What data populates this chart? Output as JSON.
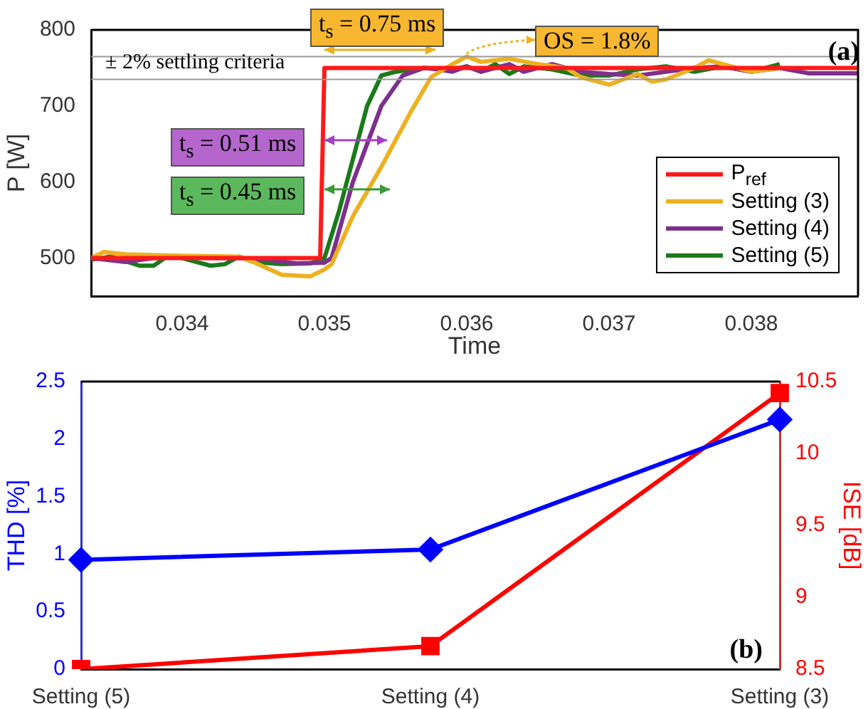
{
  "chart_data": [
    {
      "type": "line",
      "xlabel": "Time",
      "ylabel": "P [W]",
      "xlim": [
        0.03336,
        0.03875
      ],
      "xticks": [
        0.034,
        0.035,
        0.036,
        0.037,
        0.038
      ],
      "ylim": [
        450,
        800
      ],
      "yticks": [
        500,
        600,
        700,
        800
      ],
      "grid": false,
      "legend": "bottom right",
      "marker": "none",
      "line_style": "solid",
      "series": [
        {
          "name": "P$_{ref}$",
          "color": "#ff1a1a",
          "x": [
            0.03336,
            0.03497,
            0.035,
            0.03875
          ],
          "values": [
            500,
            500,
            750,
            750
          ]
        },
        {
          "name": "Setting (3)",
          "color": "#edb120",
          "x": [
            0.03336,
            0.03345,
            0.0336,
            0.034,
            0.0344,
            0.0345,
            0.0347,
            0.0349,
            0.035,
            0.03505,
            0.0352,
            0.0354,
            0.0356,
            0.03575,
            0.0359,
            0.036,
            0.0361,
            0.0363,
            0.0365,
            0.0367,
            0.0368,
            0.037,
            0.0371,
            0.0372,
            0.0373,
            0.0374,
            0.0376,
            0.0377,
            0.0378,
            0.038,
            0.0382
          ],
          "values": [
            500,
            508,
            505,
            503,
            502,
            495,
            478,
            476,
            485,
            492,
            555,
            620,
            690,
            738,
            755,
            765,
            758,
            762,
            755,
            750,
            738,
            728,
            735,
            742,
            732,
            735,
            750,
            760,
            755,
            745,
            750
          ]
        },
        {
          "name": "Setting (4)",
          "color": "#7e2f8e",
          "x": [
            0.03336,
            0.0336,
            0.0338,
            0.034,
            0.0342,
            0.0344,
            0.0346,
            0.0348,
            0.035,
            0.03505,
            0.0352,
            0.0354,
            0.03555,
            0.0357,
            0.0358,
            0.0359,
            0.036,
            0.0361,
            0.0363,
            0.0364,
            0.0366,
            0.0368,
            0.037,
            0.0372,
            0.0374,
            0.0376,
            0.0378,
            0.038,
            0.0382,
            0.0384,
            0.03875
          ],
          "values": [
            500,
            495,
            500,
            502,
            500,
            500,
            498,
            493,
            494,
            500,
            600,
            700,
            740,
            750,
            748,
            745,
            752,
            745,
            755,
            745,
            755,
            745,
            742,
            740,
            745,
            750,
            752,
            745,
            750,
            743,
            743
          ]
        },
        {
          "name": "Setting (5)",
          "color": "#1a7a1a",
          "x": [
            0.03336,
            0.0335,
            0.0337,
            0.0338,
            0.0339,
            0.034,
            0.0342,
            0.0343,
            0.0344,
            0.0345,
            0.0347,
            0.0349,
            0.035,
            0.0351,
            0.0352,
            0.0353,
            0.0354,
            0.0355,
            0.0357,
            0.0359,
            0.036,
            0.0361,
            0.0362,
            0.0363,
            0.0364,
            0.0366,
            0.0368,
            0.037,
            0.0372,
            0.0374,
            0.0376,
            0.0378,
            0.038,
            0.0382
          ],
          "values": [
            498,
            502,
            490,
            490,
            503,
            500,
            490,
            492,
            502,
            495,
            492,
            493,
            500,
            560,
            630,
            700,
            740,
            745,
            750,
            748,
            752,
            745,
            755,
            742,
            752,
            748,
            740,
            740,
            748,
            752,
            745,
            752,
            745,
            755
          ]
        }
      ],
      "ref_lines": [
        {
          "axis": "y",
          "value": 765,
          "color": "#999999"
        },
        {
          "axis": "y",
          "value": 735,
          "color": "#999999"
        }
      ],
      "annotations": [
        "t$_{s}$ = 0.75 ms",
        {
          "text": "OS = 1.8%",
          "x": 0.036,
          "y": 765
        },
        "± 2% settling criteria",
        {
          "text": "t$_{s}$ = 0.51 ms",
          "x": 0.03531,
          "y": 655
        },
        "t$_{s}$ = 0.45 ms",
        "(a)"
      ]
    },
    {
      "type": "line",
      "ylabel": "THD [%]",
      "y2label": "ISE [dB]",
      "categories": [
        "Setting (5)",
        "Setting (4)",
        "Setting (3)"
      ],
      "ylim": [
        0,
        2.5
      ],
      "yticks": [
        0,
        0.5,
        1,
        1.5,
        2,
        2.5
      ],
      "y2lim": [
        8.5,
        10.5
      ],
      "y2ticks": [
        8.5,
        9,
        9.5,
        10,
        10.5
      ],
      "grid": false,
      "legend": false,
      "line_style": "solid",
      "series": [
        {
          "color": "#0000ff",
          "marker": "diamond",
          "values": [
            0.95,
            1.04,
            2.17
          ]
        },
        {
          "color": "#ff0000",
          "marker": "square",
          "axis": "y2",
          "values": [
            8.5,
            8.66,
            10.42
          ]
        }
      ],
      "annotations": [
        "(b)"
      ]
    }
  ]
}
